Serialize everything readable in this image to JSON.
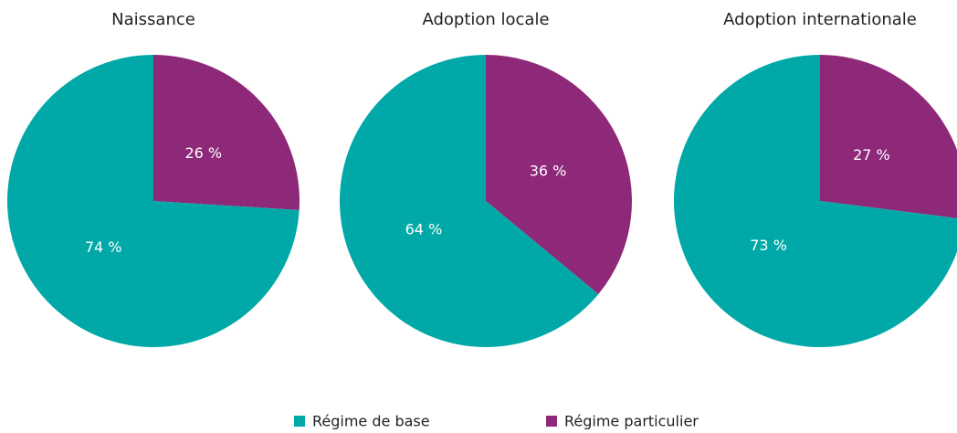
{
  "chart_data": [
    {
      "type": "pie",
      "title": "Naissance",
      "categories": [
        "Régime de base",
        "Régime particulier"
      ],
      "values": [
        74,
        26
      ],
      "value_labels": [
        "74 %",
        "26 %"
      ],
      "colors": [
        "#00a9a7",
        "#8e2878"
      ]
    },
    {
      "type": "pie",
      "title": "Adoption locale",
      "categories": [
        "Régime de base",
        "Régime particulier"
      ],
      "values": [
        64,
        36
      ],
      "value_labels": [
        "64 %",
        "36 %"
      ],
      "colors": [
        "#00a9a7",
        "#8e2878"
      ]
    },
    {
      "type": "pie",
      "title": "Adoption internationale",
      "categories": [
        "Régime de base",
        "Régime particulier"
      ],
      "values": [
        73,
        27
      ],
      "value_labels": [
        "73 %",
        "27 %"
      ],
      "colors": [
        "#00a9a7",
        "#8e2878"
      ]
    }
  ]
}
